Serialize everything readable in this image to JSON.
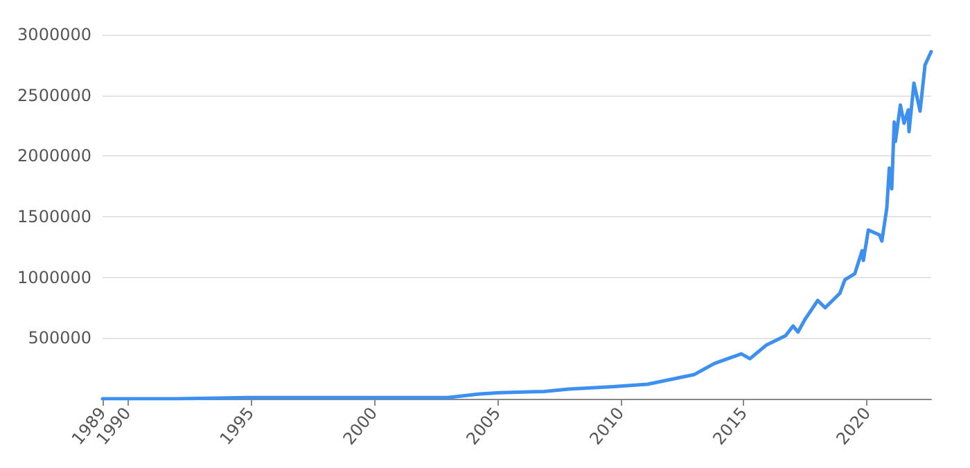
{
  "chart_data": {
    "type": "line",
    "x": [
      1989,
      1992.0,
      1994.9,
      2003.0,
      2004.3,
      2005.1,
      2006.9,
      2007.9,
      2009.7,
      2011.1,
      2013.0,
      2013.8,
      2014.9,
      2015.25,
      2015.9,
      2016.7,
      2017.0,
      2017.2,
      2017.5,
      2018.0,
      2018.3,
      2018.9,
      2019.1,
      2019.5,
      2019.8,
      2019.85,
      2020.05,
      2020.5,
      2020.6,
      2020.8,
      2020.9,
      2021.0,
      2021.1,
      2021.15,
      2021.35,
      2021.5,
      2021.67,
      2021.7,
      2021.9,
      2022.15,
      2022.35,
      2022.6
    ],
    "series": [
      {
        "color": "#3d8ff0",
        "values": [
          0,
          0,
          10000,
          10000,
          40000,
          50000,
          60000,
          80000,
          100000,
          120000,
          200000,
          290000,
          370000,
          330000,
          440000,
          520000,
          600000,
          550000,
          660000,
          810000,
          750000,
          870000,
          980000,
          1030000,
          1220000,
          1140000,
          1390000,
          1350000,
          1300000,
          1570000,
          1900000,
          1730000,
          2280000,
          2120000,
          2420000,
          2270000,
          2380000,
          2200000,
          2600000,
          2370000,
          2750000,
          2860000
        ]
      }
    ],
    "xlim": [
      1989,
      2022.6
    ],
    "xticks": [
      1989,
      1990,
      1995,
      2000,
      2005,
      2010,
      2015,
      2020
    ],
    "ylim": [
      0,
      3000000
    ],
    "yticks": [
      {
        "value": 0,
        "label": null
      },
      500000,
      1000000,
      1500000,
      2000000,
      2500000,
      3000000
    ],
    "grid": "y",
    "marker": "none",
    "line_style": "solid"
  }
}
